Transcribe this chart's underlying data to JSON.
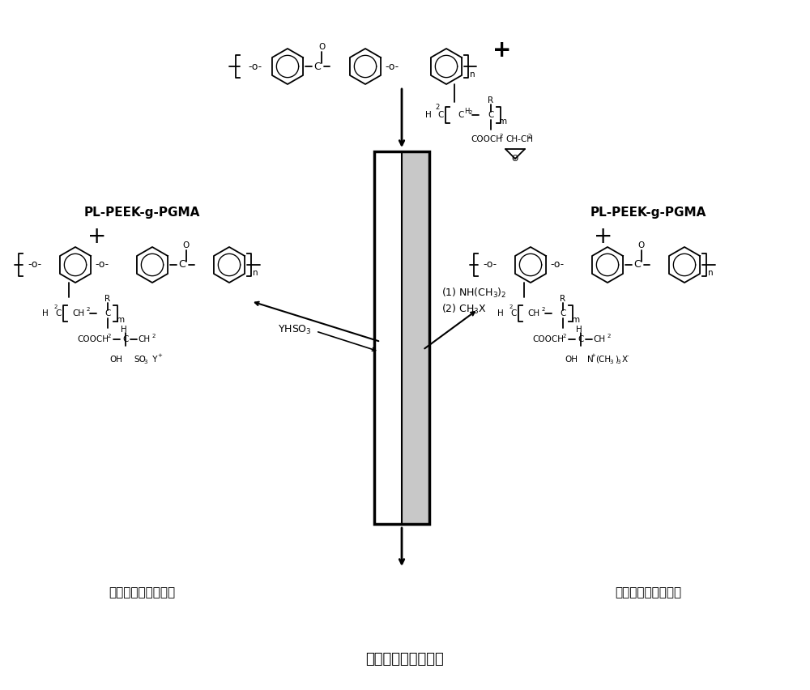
{
  "title_bottom": "含叶噛聚醚醚双极膜",
  "label_left_title": "PL-PEEK-g-PGMA",
  "label_right_title": "PL-PEEK-g-PGMA",
  "label_left_bottom": "聚醚醚阳离子交换膜",
  "label_right_bottom": "聚醚醚阴离子交换膜",
  "label_yhso3": "YHSO$_3$",
  "label_1": "(1) NH(CH$_3$)$_2$",
  "label_2": "(2) CH$_3$X",
  "bg_color": "#ffffff"
}
